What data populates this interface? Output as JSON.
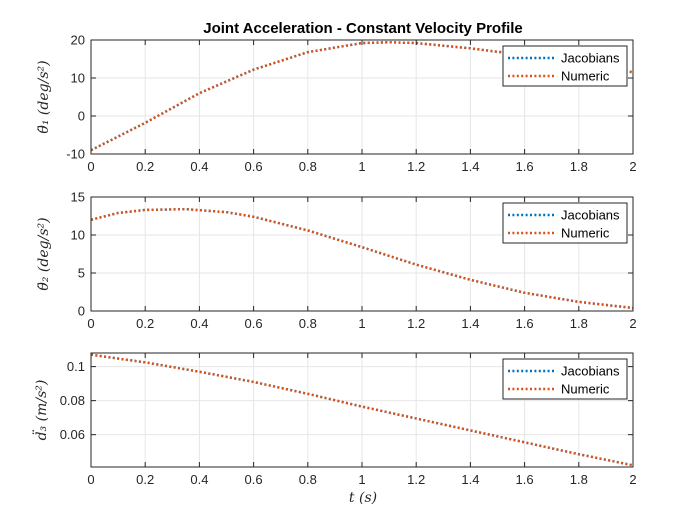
{
  "figure": {
    "title": "Joint Acceleration - Constant Velocity Profile",
    "xlabel": "t (s)",
    "colors": {
      "jacobians": "#0072BD",
      "numeric": "#D95319",
      "grid": "#e6e6e6",
      "axis": "#262626"
    }
  },
  "chart_data": [
    {
      "type": "line",
      "title": "Joint Acceleration - Constant Velocity Profile",
      "xlabel": "",
      "ylabel": "θ̈₁ (deg/s²)",
      "xlim": [
        0,
        2
      ],
      "ylim": [
        -10,
        20
      ],
      "xticks": [
        "0",
        "0.2",
        "0.4",
        "0.6",
        "0.8",
        "1",
        "1.2",
        "1.4",
        "1.6",
        "1.8",
        "2"
      ],
      "yticks": [
        "-10",
        "0",
        "10",
        "20"
      ],
      "grid": true,
      "legend": "top-right",
      "x": [
        0,
        0.2,
        0.4,
        0.6,
        0.8,
        1.0,
        1.1,
        1.2,
        1.4,
        1.6,
        1.8,
        2.0
      ],
      "series": [
        {
          "name": "Jacobians",
          "style": "dotted",
          "values": [
            -9.0,
            -1.8,
            6.0,
            12.2,
            16.8,
            19.2,
            19.4,
            19.2,
            17.8,
            16.0,
            13.8,
            11.5
          ]
        },
        {
          "name": "Numeric",
          "style": "dotted",
          "values": [
            -9.0,
            -1.8,
            6.0,
            12.2,
            16.8,
            19.2,
            19.4,
            19.2,
            17.8,
            16.0,
            13.8,
            11.5
          ]
        }
      ]
    },
    {
      "type": "line",
      "title": "",
      "xlabel": "",
      "ylabel": "θ̈₂ (deg/s²)",
      "xlim": [
        0,
        2
      ],
      "ylim": [
        0,
        15
      ],
      "xticks": [
        "0",
        "0.2",
        "0.4",
        "0.6",
        "0.8",
        "1",
        "1.2",
        "1.4",
        "1.6",
        "1.8",
        "2"
      ],
      "yticks": [
        "0",
        "5",
        "10",
        "15"
      ],
      "grid": true,
      "legend": "top-right",
      "x": [
        0,
        0.1,
        0.2,
        0.35,
        0.5,
        0.6,
        0.8,
        1.0,
        1.2,
        1.4,
        1.6,
        1.8,
        2.0
      ],
      "series": [
        {
          "name": "Jacobians",
          "style": "dotted",
          "values": [
            12.0,
            12.9,
            13.3,
            13.4,
            13.0,
            12.4,
            10.6,
            8.4,
            6.1,
            4.1,
            2.4,
            1.2,
            0.4
          ]
        },
        {
          "name": "Numeric",
          "style": "dotted",
          "values": [
            12.0,
            12.9,
            13.3,
            13.4,
            13.0,
            12.4,
            10.6,
            8.4,
            6.1,
            4.1,
            2.4,
            1.2,
            0.4
          ]
        }
      ]
    },
    {
      "type": "line",
      "title": "",
      "xlabel": "t (s)",
      "ylabel": "d̈₃ (m/s²)",
      "xlim": [
        0,
        2
      ],
      "ylim": [
        0.041,
        0.108
      ],
      "xticks": [
        "0",
        "0.2",
        "0.4",
        "0.6",
        "0.8",
        "1",
        "1.2",
        "1.4",
        "1.6",
        "1.8",
        "2"
      ],
      "yticks": [
        "0.06",
        "0.08",
        "0.1"
      ],
      "grid": true,
      "legend": "top-right",
      "x": [
        0,
        0.2,
        0.4,
        0.6,
        0.8,
        1.0,
        1.2,
        1.4,
        1.6,
        1.8,
        2.0
      ],
      "series": [
        {
          "name": "Jacobians",
          "style": "dotted",
          "values": [
            0.107,
            0.1025,
            0.097,
            0.091,
            0.084,
            0.0765,
            0.0695,
            0.0625,
            0.0555,
            0.0485,
            0.042
          ]
        },
        {
          "name": "Numeric",
          "style": "dotted",
          "values": [
            0.107,
            0.1025,
            0.097,
            0.091,
            0.084,
            0.0765,
            0.0695,
            0.0625,
            0.0555,
            0.0485,
            0.042
          ]
        }
      ]
    }
  ]
}
